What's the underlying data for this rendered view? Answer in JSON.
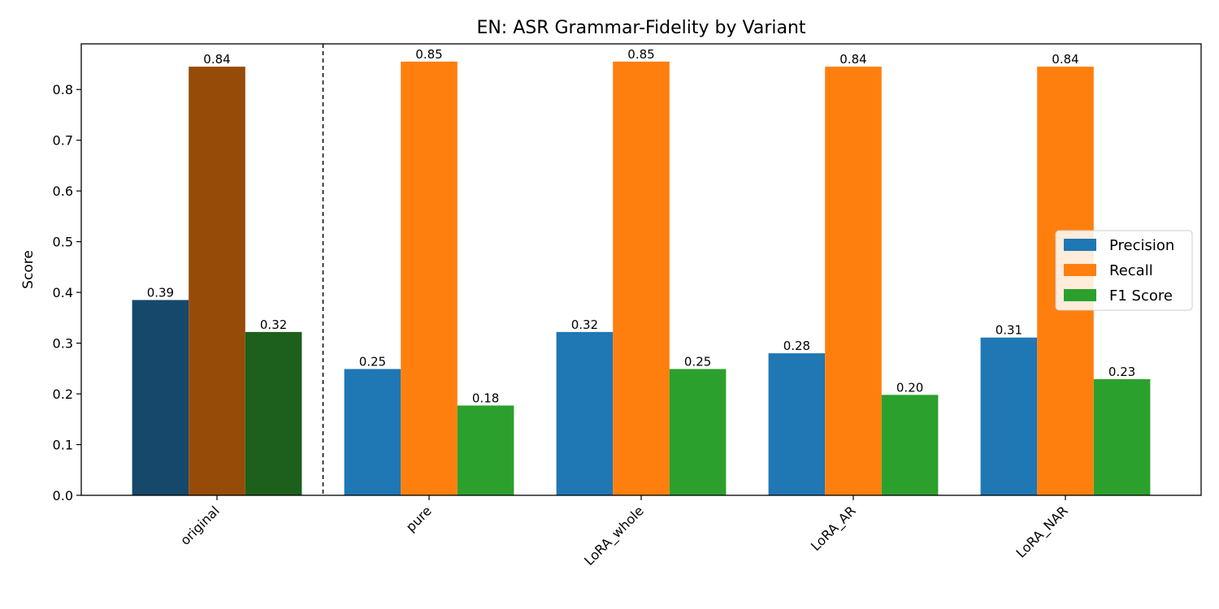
{
  "chart_data": {
    "type": "bar",
    "title": "EN: ASR Grammar-Fidelity by Variant",
    "xlabel": "",
    "ylabel": "Score",
    "ylim": [
      0,
      0.89
    ],
    "yticks": [
      "0.0",
      "0.1",
      "0.2",
      "0.3",
      "0.4",
      "0.5",
      "0.6",
      "0.7",
      "0.8"
    ],
    "categories": [
      "original",
      "pure",
      "LoRA_whole",
      "LoRA_AR",
      "LoRA_NAR"
    ],
    "series": [
      {
        "name": "Precision",
        "color": "#1f77b4",
        "highlight_color": "#15486b",
        "values": [
          0.385,
          0.249,
          0.322,
          0.28,
          0.311
        ],
        "labels": [
          "0.39",
          "0.25",
          "0.32",
          "0.28",
          "0.31"
        ]
      },
      {
        "name": "Recall",
        "color": "#ff7f0e",
        "highlight_color": "#964b08",
        "values": [
          0.845,
          0.855,
          0.855,
          0.845,
          0.845
        ],
        "labels": [
          "0.84",
          "0.85",
          "0.85",
          "0.84",
          "0.84"
        ]
      },
      {
        "name": "F1 Score",
        "color": "#2ca02c",
        "highlight_color": "#1c601c",
        "values": [
          0.322,
          0.177,
          0.249,
          0.198,
          0.229
        ],
        "labels": [
          "0.32",
          "0.18",
          "0.25",
          "0.20",
          "0.23"
        ]
      }
    ],
    "highlight_category": "original",
    "separator_after_category": "original",
    "legend_position": "center-right",
    "grid": false
  }
}
